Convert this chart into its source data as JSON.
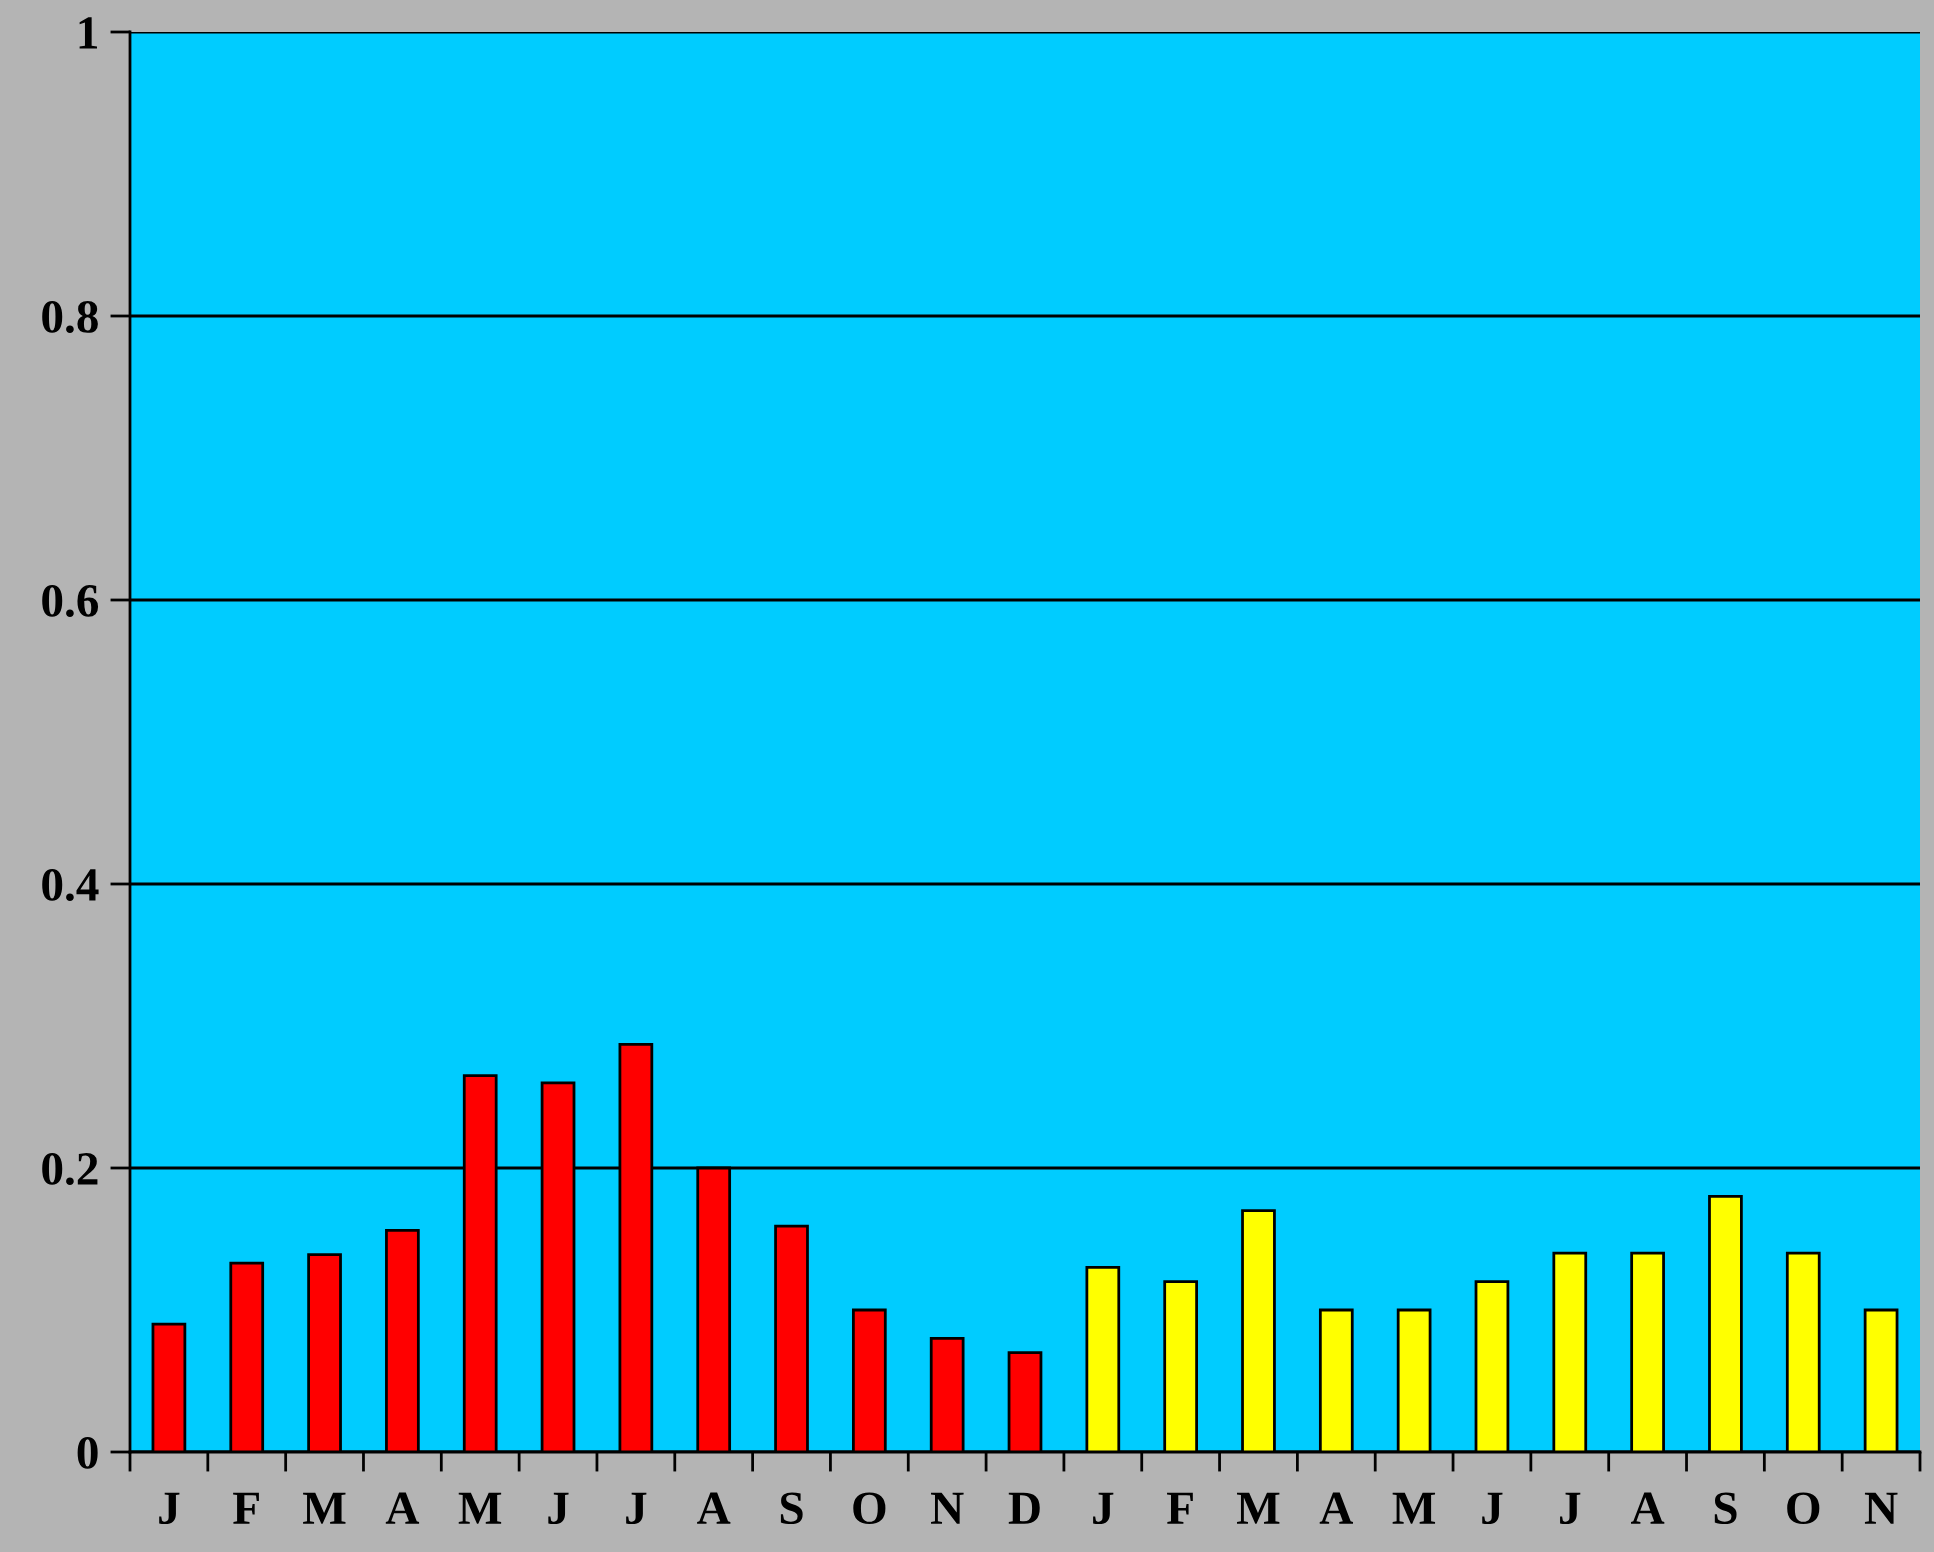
{
  "chart_data": {
    "type": "bar",
    "categories": [
      "J",
      "F",
      "M",
      "A",
      "M",
      "J",
      "J",
      "A",
      "S",
      "O",
      "N",
      "D",
      "J",
      "F",
      "M",
      "A",
      "M",
      "J",
      "J",
      "A",
      "S",
      "O",
      "N"
    ],
    "values": [
      0.09,
      0.133,
      0.139,
      0.156,
      0.265,
      0.26,
      0.287,
      0.2,
      0.159,
      0.1,
      0.08,
      0.07,
      0.13,
      0.12,
      0.17,
      0.1,
      0.1,
      0.12,
      0.14,
      0.14,
      0.18,
      0.14,
      0.1
    ],
    "colors": [
      "#ff0000",
      "#ff0000",
      "#ff0000",
      "#ff0000",
      "#ff0000",
      "#ff0000",
      "#ff0000",
      "#ff0000",
      "#ff0000",
      "#ff0000",
      "#ff0000",
      "#ff0000",
      "#ffff00",
      "#ffff00",
      "#ffff00",
      "#ffff00",
      "#ffff00",
      "#ffff00",
      "#ffff00",
      "#ffff00",
      "#ffff00",
      "#ffff00",
      "#ffff00"
    ],
    "ylim": [
      0,
      1
    ],
    "yticks": [
      0,
      0.2,
      0.4,
      0.6,
      0.8,
      1
    ],
    "grid": "y"
  }
}
